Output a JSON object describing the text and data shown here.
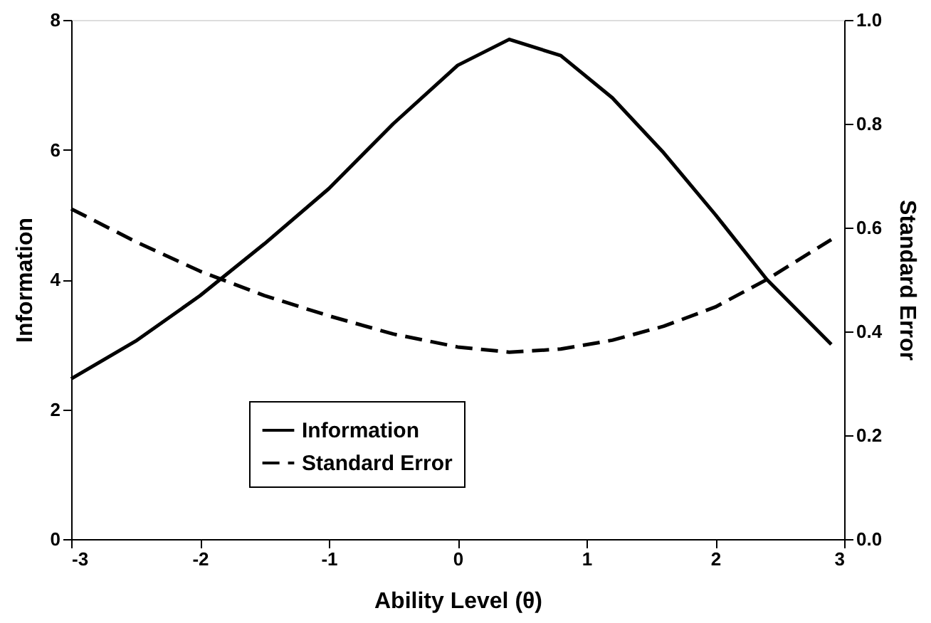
{
  "chart_data": {
    "type": "line",
    "xlabel": "Ability Level (θ)",
    "ylabel": "Information",
    "y2label": "Standard Error",
    "x": [
      -3,
      -2.5,
      -2,
      -1.5,
      -1,
      -0.5,
      0,
      0.4,
      0.8,
      1.2,
      1.6,
      2.0,
      2.4,
      2.9
    ],
    "series": [
      {
        "name": "Information",
        "color": "#000000",
        "line_style": "solid",
        "values": [
          2.47,
          3.05,
          3.75,
          4.55,
          5.4,
          6.4,
          7.3,
          7.7,
          7.45,
          6.8,
          5.95,
          5.0,
          4.0,
          3.0
        ]
      },
      {
        "name": "Standard Error",
        "color": "#000000",
        "line_style": "dashed",
        "axis": "y2",
        "values": [
          0.636,
          0.573,
          0.516,
          0.469,
          0.43,
          0.395,
          0.37,
          0.36,
          0.366,
          0.383,
          0.41,
          0.447,
          0.5,
          0.577
        ]
      }
    ],
    "xlim": [
      -3,
      3
    ],
    "xticks": [
      -3,
      -2,
      -1,
      0,
      1,
      2,
      3
    ],
    "ylim": [
      0,
      8
    ],
    "yticks": [
      0,
      2,
      4,
      6,
      8
    ],
    "y2lim": [
      0,
      1
    ],
    "y2ticks": [
      {
        "value": 0,
        "label": "0.0"
      },
      0.2,
      0.4,
      0.6,
      0.8,
      {
        "value": 1,
        "label": "1.0"
      }
    ],
    "grid": false,
    "legend": "bottom",
    "marker": "none"
  }
}
